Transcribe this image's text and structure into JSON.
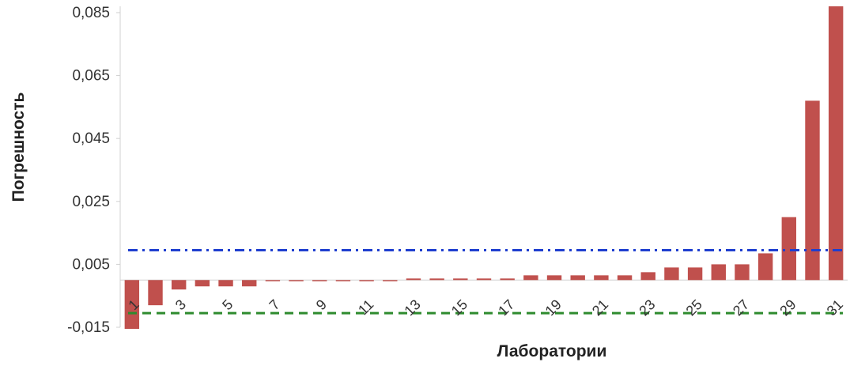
{
  "chart_data": {
    "type": "bar",
    "xlabel": "Лаборатории",
    "ylabel": "Погрешность",
    "ylim": [
      -0.015,
      0.087
    ],
    "y_ticks": [
      -0.015,
      0.005,
      0.025,
      0.045,
      0.065,
      0.085
    ],
    "y_tick_labels": [
      "-0,015",
      "0,005",
      "0,025",
      "0,045",
      "0,065",
      "0,085"
    ],
    "categories": [
      "1",
      "2",
      "3",
      "4",
      "5",
      "6",
      "7",
      "8",
      "9",
      "10",
      "11",
      "12",
      "13",
      "14",
      "15",
      "16",
      "17",
      "18",
      "19",
      "20",
      "21",
      "22",
      "23",
      "24",
      "25",
      "26",
      "27",
      "28",
      "29",
      "30",
      "31"
    ],
    "x_tick_labels_shown": [
      "1",
      "3",
      "5",
      "7",
      "9",
      "11",
      "13",
      "15",
      "17",
      "19",
      "21",
      "23",
      "25",
      "27",
      "29",
      "31"
    ],
    "values": [
      -0.0155,
      -0.008,
      -0.003,
      -0.002,
      -0.002,
      -0.002,
      0,
      0,
      0,
      0,
      0,
      0,
      0.0005,
      0.0005,
      0.0005,
      0.0005,
      0.0005,
      0.0015,
      0.0015,
      0.0015,
      0.0015,
      0.0015,
      0.0025,
      0.004,
      0.004,
      0.005,
      0.005,
      0.0085,
      0.02,
      0.057,
      0.087
    ],
    "bar_color": "#c0504d",
    "reference_lines": [
      {
        "value": 0.0095,
        "color": "#1f3fcf",
        "style": "dash-dot"
      },
      {
        "value": -0.0105,
        "color": "#2e8b2e",
        "style": "dashed"
      }
    ],
    "grid": false,
    "legend": "none"
  }
}
